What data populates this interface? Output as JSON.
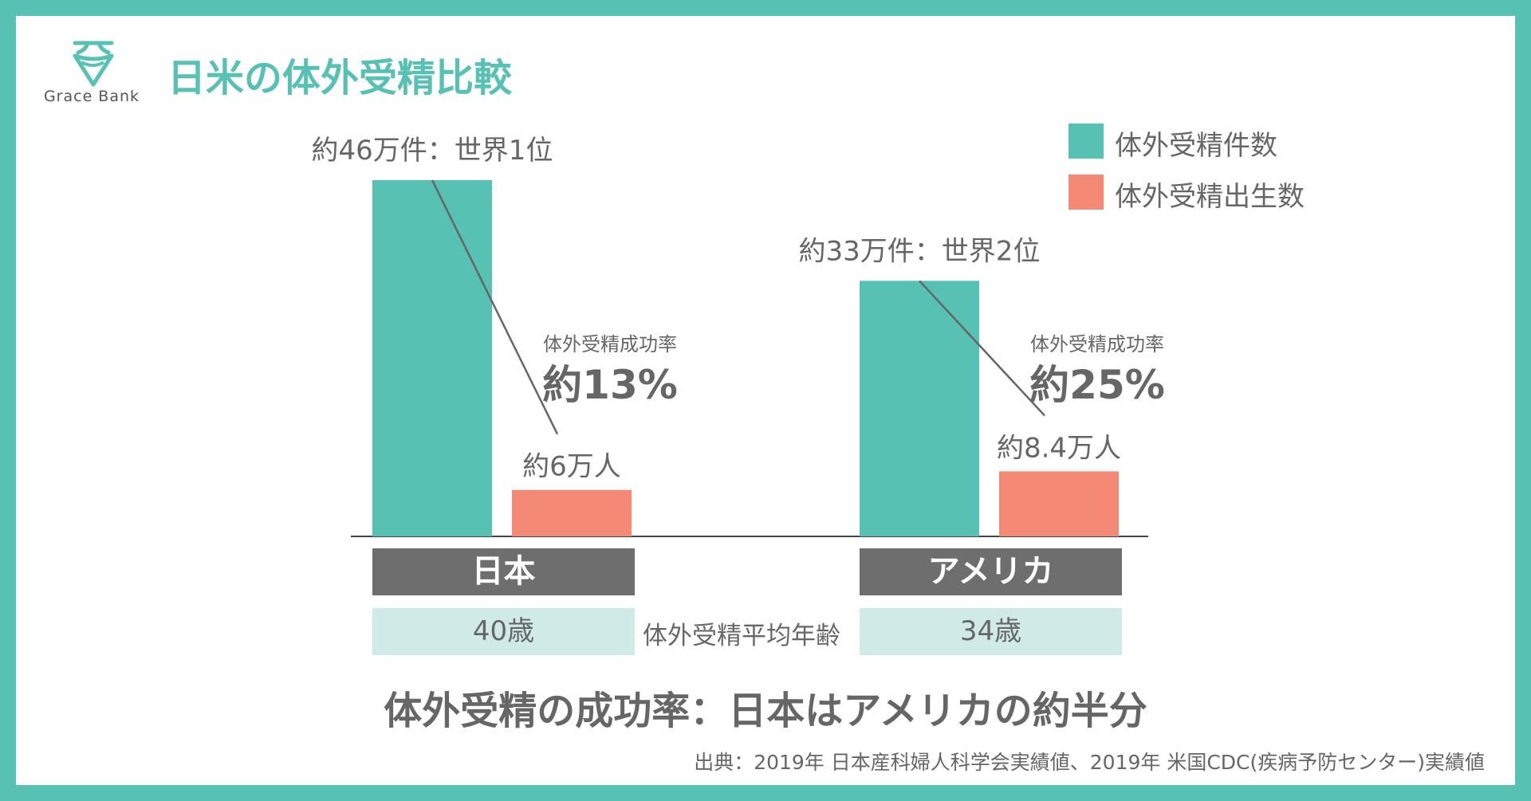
{
  "header": {
    "title": "日米の体外受精比較",
    "brand": "Grace Bank"
  },
  "colors": {
    "frame": "#57c1b3",
    "cycles": "#57c1b3",
    "births": "#f48a76",
    "category_box": "#6e6e6e",
    "age_box": "#cfeae7",
    "text": "#666666"
  },
  "chart_data": {
    "type": "bar",
    "categories": [
      "日本",
      "アメリカ"
    ],
    "series": [
      {
        "name": "体外受精件数",
        "values": [
          46,
          33
        ],
        "unit": "万件"
      },
      {
        "name": "体外受精出生数",
        "values": [
          6,
          8.4
        ],
        "unit": "万人"
      }
    ],
    "legend": [
      "体外受精件数",
      "体外受精出生数"
    ],
    "legend_position": "top-right",
    "annotations": {
      "cycle_labels": [
        "約46万件：世界1位",
        "約33万件：世界2位"
      ],
      "birth_labels": [
        "約6万人",
        "約8.4万人"
      ],
      "success_rate_label": "体外受精成功率",
      "success_rates": [
        "約13%",
        "約25%"
      ]
    },
    "ylim": [
      0,
      50
    ],
    "grid": false
  },
  "ages": {
    "label": "体外受精平均年齢",
    "values": [
      "40歳",
      "34歳"
    ]
  },
  "summary": "体外受精の成功率：日本はアメリカの約半分",
  "source": "出典：2019年 日本産科婦人科学会実績値、2019年 米国CDC(疾病予防センター)実績値"
}
